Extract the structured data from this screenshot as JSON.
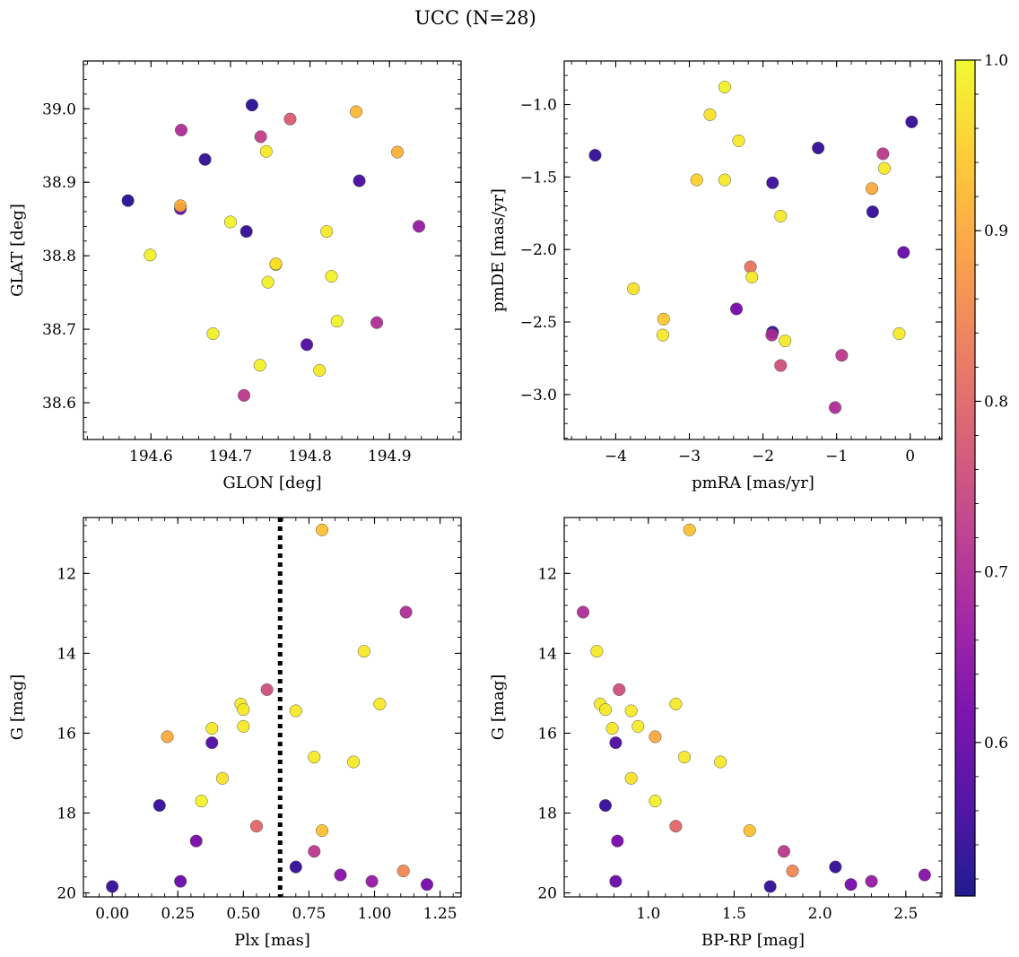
{
  "title": "UCC (N=28)",
  "colormap": "plasma",
  "marker_edge_color": "#555555",
  "colorbar": {
    "range": [
      0.51,
      1.0
    ],
    "ticks": [
      {
        "v": 0.6,
        "label": "0.6"
      },
      {
        "v": 0.7,
        "label": "0.7"
      },
      {
        "v": 0.8,
        "label": "0.8"
      },
      {
        "v": 0.9,
        "label": "0.9"
      },
      {
        "v": 1.0,
        "label": "1.0"
      }
    ]
  },
  "threshold_line": {
    "plx": 0.64,
    "style": "dotted",
    "color": "#000000"
  },
  "chart_data": [
    {
      "type": "scatter",
      "id": "glon-glat",
      "xlabel": "GLON [deg]",
      "ylabel": "GLAT [deg]",
      "xlim": [
        194.515,
        194.99
      ],
      "ylim": [
        38.55,
        39.065
      ],
      "y_inverted": false,
      "xticks": [
        {
          "v": 194.6,
          "label": "194.6"
        },
        {
          "v": 194.7,
          "label": "194.7"
        },
        {
          "v": 194.8,
          "label": "194.8"
        },
        {
          "v": 194.9,
          "label": "194.9"
        }
      ],
      "yticks": [
        {
          "v": 38.6,
          "label": "38.6"
        },
        {
          "v": 38.7,
          "label": "38.7"
        },
        {
          "v": 38.8,
          "label": "38.8"
        },
        {
          "v": 38.9,
          "label": "38.9"
        },
        {
          "v": 39.0,
          "label": "39.0"
        }
      ],
      "x_minor_step": 0.02,
      "y_minor_step": 0.02,
      "points": [
        {
          "x": 194.727,
          "y": 39.005,
          "c": 0.53
        },
        {
          "x": 194.775,
          "y": 38.986,
          "c": 0.78
        },
        {
          "x": 194.858,
          "y": 38.996,
          "c": 0.92
        },
        {
          "x": 194.638,
          "y": 38.971,
          "c": 0.7
        },
        {
          "x": 194.738,
          "y": 38.962,
          "c": 0.73
        },
        {
          "x": 194.745,
          "y": 38.942,
          "c": 0.98
        },
        {
          "x": 194.91,
          "y": 38.941,
          "c": 0.91
        },
        {
          "x": 194.668,
          "y": 38.931,
          "c": 0.54
        },
        {
          "x": 194.862,
          "y": 38.902,
          "c": 0.56
        },
        {
          "x": 194.571,
          "y": 38.875,
          "c": 0.53
        },
        {
          "x": 194.637,
          "y": 38.864,
          "c": 0.6
        },
        {
          "x": 194.637,
          "y": 38.868,
          "c": 0.91
        },
        {
          "x": 194.7,
          "y": 38.846,
          "c": 0.99
        },
        {
          "x": 194.937,
          "y": 38.84,
          "c": 0.66
        },
        {
          "x": 194.72,
          "y": 38.833,
          "c": 0.54
        },
        {
          "x": 194.821,
          "y": 38.833,
          "c": 0.98
        },
        {
          "x": 194.599,
          "y": 38.801,
          "c": 0.99
        },
        {
          "x": 194.757,
          "y": 38.788,
          "c": 0.98
        },
        {
          "x": 194.827,
          "y": 38.772,
          "c": 0.99
        },
        {
          "x": 194.747,
          "y": 38.764,
          "c": 0.99
        },
        {
          "x": 194.834,
          "y": 38.711,
          "c": 0.99
        },
        {
          "x": 194.884,
          "y": 38.709,
          "c": 0.7
        },
        {
          "x": 194.678,
          "y": 38.694,
          "c": 0.99
        },
        {
          "x": 194.796,
          "y": 38.679,
          "c": 0.57
        },
        {
          "x": 194.737,
          "y": 38.651,
          "c": 0.99
        },
        {
          "x": 194.812,
          "y": 38.644,
          "c": 0.98
        },
        {
          "x": 194.717,
          "y": 38.61,
          "c": 0.72
        },
        {
          "x": 194.757,
          "y": 38.789,
          "c": 0.97
        }
      ]
    },
    {
      "type": "scatter",
      "id": "pmra-pmde",
      "xlabel": "pmRA [mas/yr]",
      "ylabel": "pmDE [mas/yr]",
      "xlim": [
        -4.7,
        0.43
      ],
      "ylim": [
        -3.31,
        -0.7
      ],
      "y_inverted": false,
      "xticks": [
        {
          "v": -4,
          "label": "−4"
        },
        {
          "v": -3,
          "label": "−3"
        },
        {
          "v": -2,
          "label": "−2"
        },
        {
          "v": -1,
          "label": "−1"
        },
        {
          "v": 0,
          "label": "0"
        }
      ],
      "yticks": [
        {
          "v": -3.0,
          "label": "−3.0"
        },
        {
          "v": -2.5,
          "label": "−2.5"
        },
        {
          "v": -2.0,
          "label": "−2.0"
        },
        {
          "v": -1.5,
          "label": "−1.5"
        },
        {
          "v": -1.0,
          "label": "−1.0"
        }
      ],
      "x_minor_step": 0.2,
      "y_minor_step": 0.1,
      "points": [
        {
          "x": -2.52,
          "y": -0.88,
          "c": 0.99
        },
        {
          "x": -2.72,
          "y": -1.07,
          "c": 0.97
        },
        {
          "x": 0.02,
          "y": -1.12,
          "c": 0.54
        },
        {
          "x": -2.33,
          "y": -1.25,
          "c": 0.98
        },
        {
          "x": -1.25,
          "y": -1.3,
          "c": 0.54
        },
        {
          "x": -4.28,
          "y": -1.35,
          "c": 0.54
        },
        {
          "x": -0.37,
          "y": -1.34,
          "c": 0.72
        },
        {
          "x": -0.35,
          "y": -1.44,
          "c": 0.98
        },
        {
          "x": -2.9,
          "y": -1.52,
          "c": 0.95
        },
        {
          "x": -2.52,
          "y": -1.52,
          "c": 0.98
        },
        {
          "x": -1.87,
          "y": -1.54,
          "c": 0.55
        },
        {
          "x": -0.52,
          "y": -1.58,
          "c": 0.9
        },
        {
          "x": -0.51,
          "y": -1.74,
          "c": 0.54
        },
        {
          "x": -1.76,
          "y": -1.77,
          "c": 0.98
        },
        {
          "x": -0.09,
          "y": -2.02,
          "c": 0.6
        },
        {
          "x": -2.17,
          "y": -2.12,
          "c": 0.82
        },
        {
          "x": -2.15,
          "y": -2.19,
          "c": 0.98
        },
        {
          "x": -3.76,
          "y": -2.27,
          "c": 0.97
        },
        {
          "x": -2.36,
          "y": -2.41,
          "c": 0.62
        },
        {
          "x": -3.35,
          "y": -2.48,
          "c": 0.94
        },
        {
          "x": -1.87,
          "y": -2.57,
          "c": 0.54
        },
        {
          "x": -1.88,
          "y": -2.59,
          "c": 0.7
        },
        {
          "x": -3.36,
          "y": -2.59,
          "c": 0.98
        },
        {
          "x": -0.15,
          "y": -2.58,
          "c": 0.98
        },
        {
          "x": -1.7,
          "y": -2.63,
          "c": 0.98
        },
        {
          "x": -0.93,
          "y": -2.73,
          "c": 0.72
        },
        {
          "x": -1.76,
          "y": -2.8,
          "c": 0.76
        },
        {
          "x": -1.02,
          "y": -3.09,
          "c": 0.7
        }
      ]
    },
    {
      "type": "scatter",
      "id": "plx-g",
      "xlabel": "Plx [mas]",
      "ylabel": "G [mag]",
      "xlim": [
        -0.11,
        1.33
      ],
      "ylim": [
        10.6,
        20.1
      ],
      "y_inverted": true,
      "xticks": [
        {
          "v": 0.0,
          "label": "0.00"
        },
        {
          "v": 0.25,
          "label": "0.25"
        },
        {
          "v": 0.5,
          "label": "0.50"
        },
        {
          "v": 0.75,
          "label": "0.75"
        },
        {
          "v": 1.0,
          "label": "1.00"
        },
        {
          "v": 1.25,
          "label": "1.25"
        }
      ],
      "yticks": [
        {
          "v": 12,
          "label": "12"
        },
        {
          "v": 14,
          "label": "14"
        },
        {
          "v": 16,
          "label": "16"
        },
        {
          "v": 18,
          "label": "18"
        },
        {
          "v": 20,
          "label": "20"
        }
      ],
      "x_minor_step": 0.05,
      "y_minor_step": 0.4,
      "points": [
        {
          "x": 0.8,
          "y": 10.91,
          "c": 0.93
        },
        {
          "x": 1.12,
          "y": 12.97,
          "c": 0.7
        },
        {
          "x": 0.96,
          "y": 13.95,
          "c": 0.98
        },
        {
          "x": 0.59,
          "y": 14.91,
          "c": 0.76
        },
        {
          "x": 0.49,
          "y": 15.27,
          "c": 0.98
        },
        {
          "x": 1.02,
          "y": 15.27,
          "c": 0.98
        },
        {
          "x": 0.5,
          "y": 15.41,
          "c": 0.98
        },
        {
          "x": 0.7,
          "y": 15.44,
          "c": 0.98
        },
        {
          "x": 0.5,
          "y": 15.83,
          "c": 0.98
        },
        {
          "x": 0.38,
          "y": 15.88,
          "c": 0.98
        },
        {
          "x": 0.21,
          "y": 16.09,
          "c": 0.9
        },
        {
          "x": 0.38,
          "y": 16.24,
          "c": 0.57
        },
        {
          "x": 0.77,
          "y": 16.6,
          "c": 0.98
        },
        {
          "x": 0.92,
          "y": 16.72,
          "c": 0.98
        },
        {
          "x": 0.42,
          "y": 17.13,
          "c": 0.97
        },
        {
          "x": 0.34,
          "y": 17.7,
          "c": 0.99
        },
        {
          "x": 0.18,
          "y": 17.81,
          "c": 0.54
        },
        {
          "x": 0.55,
          "y": 18.33,
          "c": 0.8
        },
        {
          "x": 0.8,
          "y": 18.44,
          "c": 0.93
        },
        {
          "x": 0.32,
          "y": 18.7,
          "c": 0.62
        },
        {
          "x": 0.77,
          "y": 18.96,
          "c": 0.72
        },
        {
          "x": 0.7,
          "y": 19.35,
          "c": 0.54
        },
        {
          "x": 1.11,
          "y": 19.45,
          "c": 0.85
        },
        {
          "x": 0.87,
          "y": 19.55,
          "c": 0.64
        },
        {
          "x": 0.26,
          "y": 19.71,
          "c": 0.6
        },
        {
          "x": 0.99,
          "y": 19.71,
          "c": 0.66
        },
        {
          "x": 1.2,
          "y": 19.79,
          "c": 0.62
        },
        {
          "x": 0.0,
          "y": 19.84,
          "c": 0.54
        }
      ]
    },
    {
      "type": "scatter",
      "id": "bprp-g",
      "xlabel": "BP-RP [mag]",
      "ylabel": "G [mag]",
      "xlim": [
        0.51,
        2.71
      ],
      "ylim": [
        10.6,
        20.1
      ],
      "y_inverted": true,
      "xticks": [
        {
          "v": 1.0,
          "label": "1.0"
        },
        {
          "v": 1.5,
          "label": "1.5"
        },
        {
          "v": 2.0,
          "label": "2.0"
        },
        {
          "v": 2.5,
          "label": "2.5"
        }
      ],
      "yticks": [
        {
          "v": 12,
          "label": "12"
        },
        {
          "v": 14,
          "label": "14"
        },
        {
          "v": 16,
          "label": "16"
        },
        {
          "v": 18,
          "label": "18"
        },
        {
          "v": 20,
          "label": "20"
        }
      ],
      "x_minor_step": 0.1,
      "y_minor_step": 0.4,
      "points": [
        {
          "x": 1.24,
          "y": 10.91,
          "c": 0.93
        },
        {
          "x": 0.62,
          "y": 12.97,
          "c": 0.7
        },
        {
          "x": 0.7,
          "y": 13.95,
          "c": 0.98
        },
        {
          "x": 0.83,
          "y": 14.91,
          "c": 0.76
        },
        {
          "x": 0.72,
          "y": 15.27,
          "c": 0.98
        },
        {
          "x": 1.16,
          "y": 15.27,
          "c": 0.98
        },
        {
          "x": 0.75,
          "y": 15.41,
          "c": 0.98
        },
        {
          "x": 0.9,
          "y": 15.44,
          "c": 0.98
        },
        {
          "x": 0.94,
          "y": 15.83,
          "c": 0.98
        },
        {
          "x": 0.79,
          "y": 15.88,
          "c": 0.98
        },
        {
          "x": 1.04,
          "y": 16.09,
          "c": 0.9
        },
        {
          "x": 0.81,
          "y": 16.24,
          "c": 0.57
        },
        {
          "x": 1.21,
          "y": 16.6,
          "c": 0.98
        },
        {
          "x": 1.42,
          "y": 16.72,
          "c": 0.98
        },
        {
          "x": 0.9,
          "y": 17.13,
          "c": 0.97
        },
        {
          "x": 1.04,
          "y": 17.7,
          "c": 0.99
        },
        {
          "x": 0.75,
          "y": 17.81,
          "c": 0.54
        },
        {
          "x": 1.16,
          "y": 18.33,
          "c": 0.8
        },
        {
          "x": 1.59,
          "y": 18.44,
          "c": 0.93
        },
        {
          "x": 0.82,
          "y": 18.7,
          "c": 0.62
        },
        {
          "x": 1.79,
          "y": 18.96,
          "c": 0.72
        },
        {
          "x": 2.09,
          "y": 19.35,
          "c": 0.54
        },
        {
          "x": 1.84,
          "y": 19.45,
          "c": 0.85
        },
        {
          "x": 2.61,
          "y": 19.55,
          "c": 0.64
        },
        {
          "x": 0.81,
          "y": 19.71,
          "c": 0.6
        },
        {
          "x": 2.3,
          "y": 19.71,
          "c": 0.66
        },
        {
          "x": 2.18,
          "y": 19.79,
          "c": 0.62
        },
        {
          "x": 1.71,
          "y": 19.84,
          "c": 0.54
        }
      ]
    }
  ]
}
